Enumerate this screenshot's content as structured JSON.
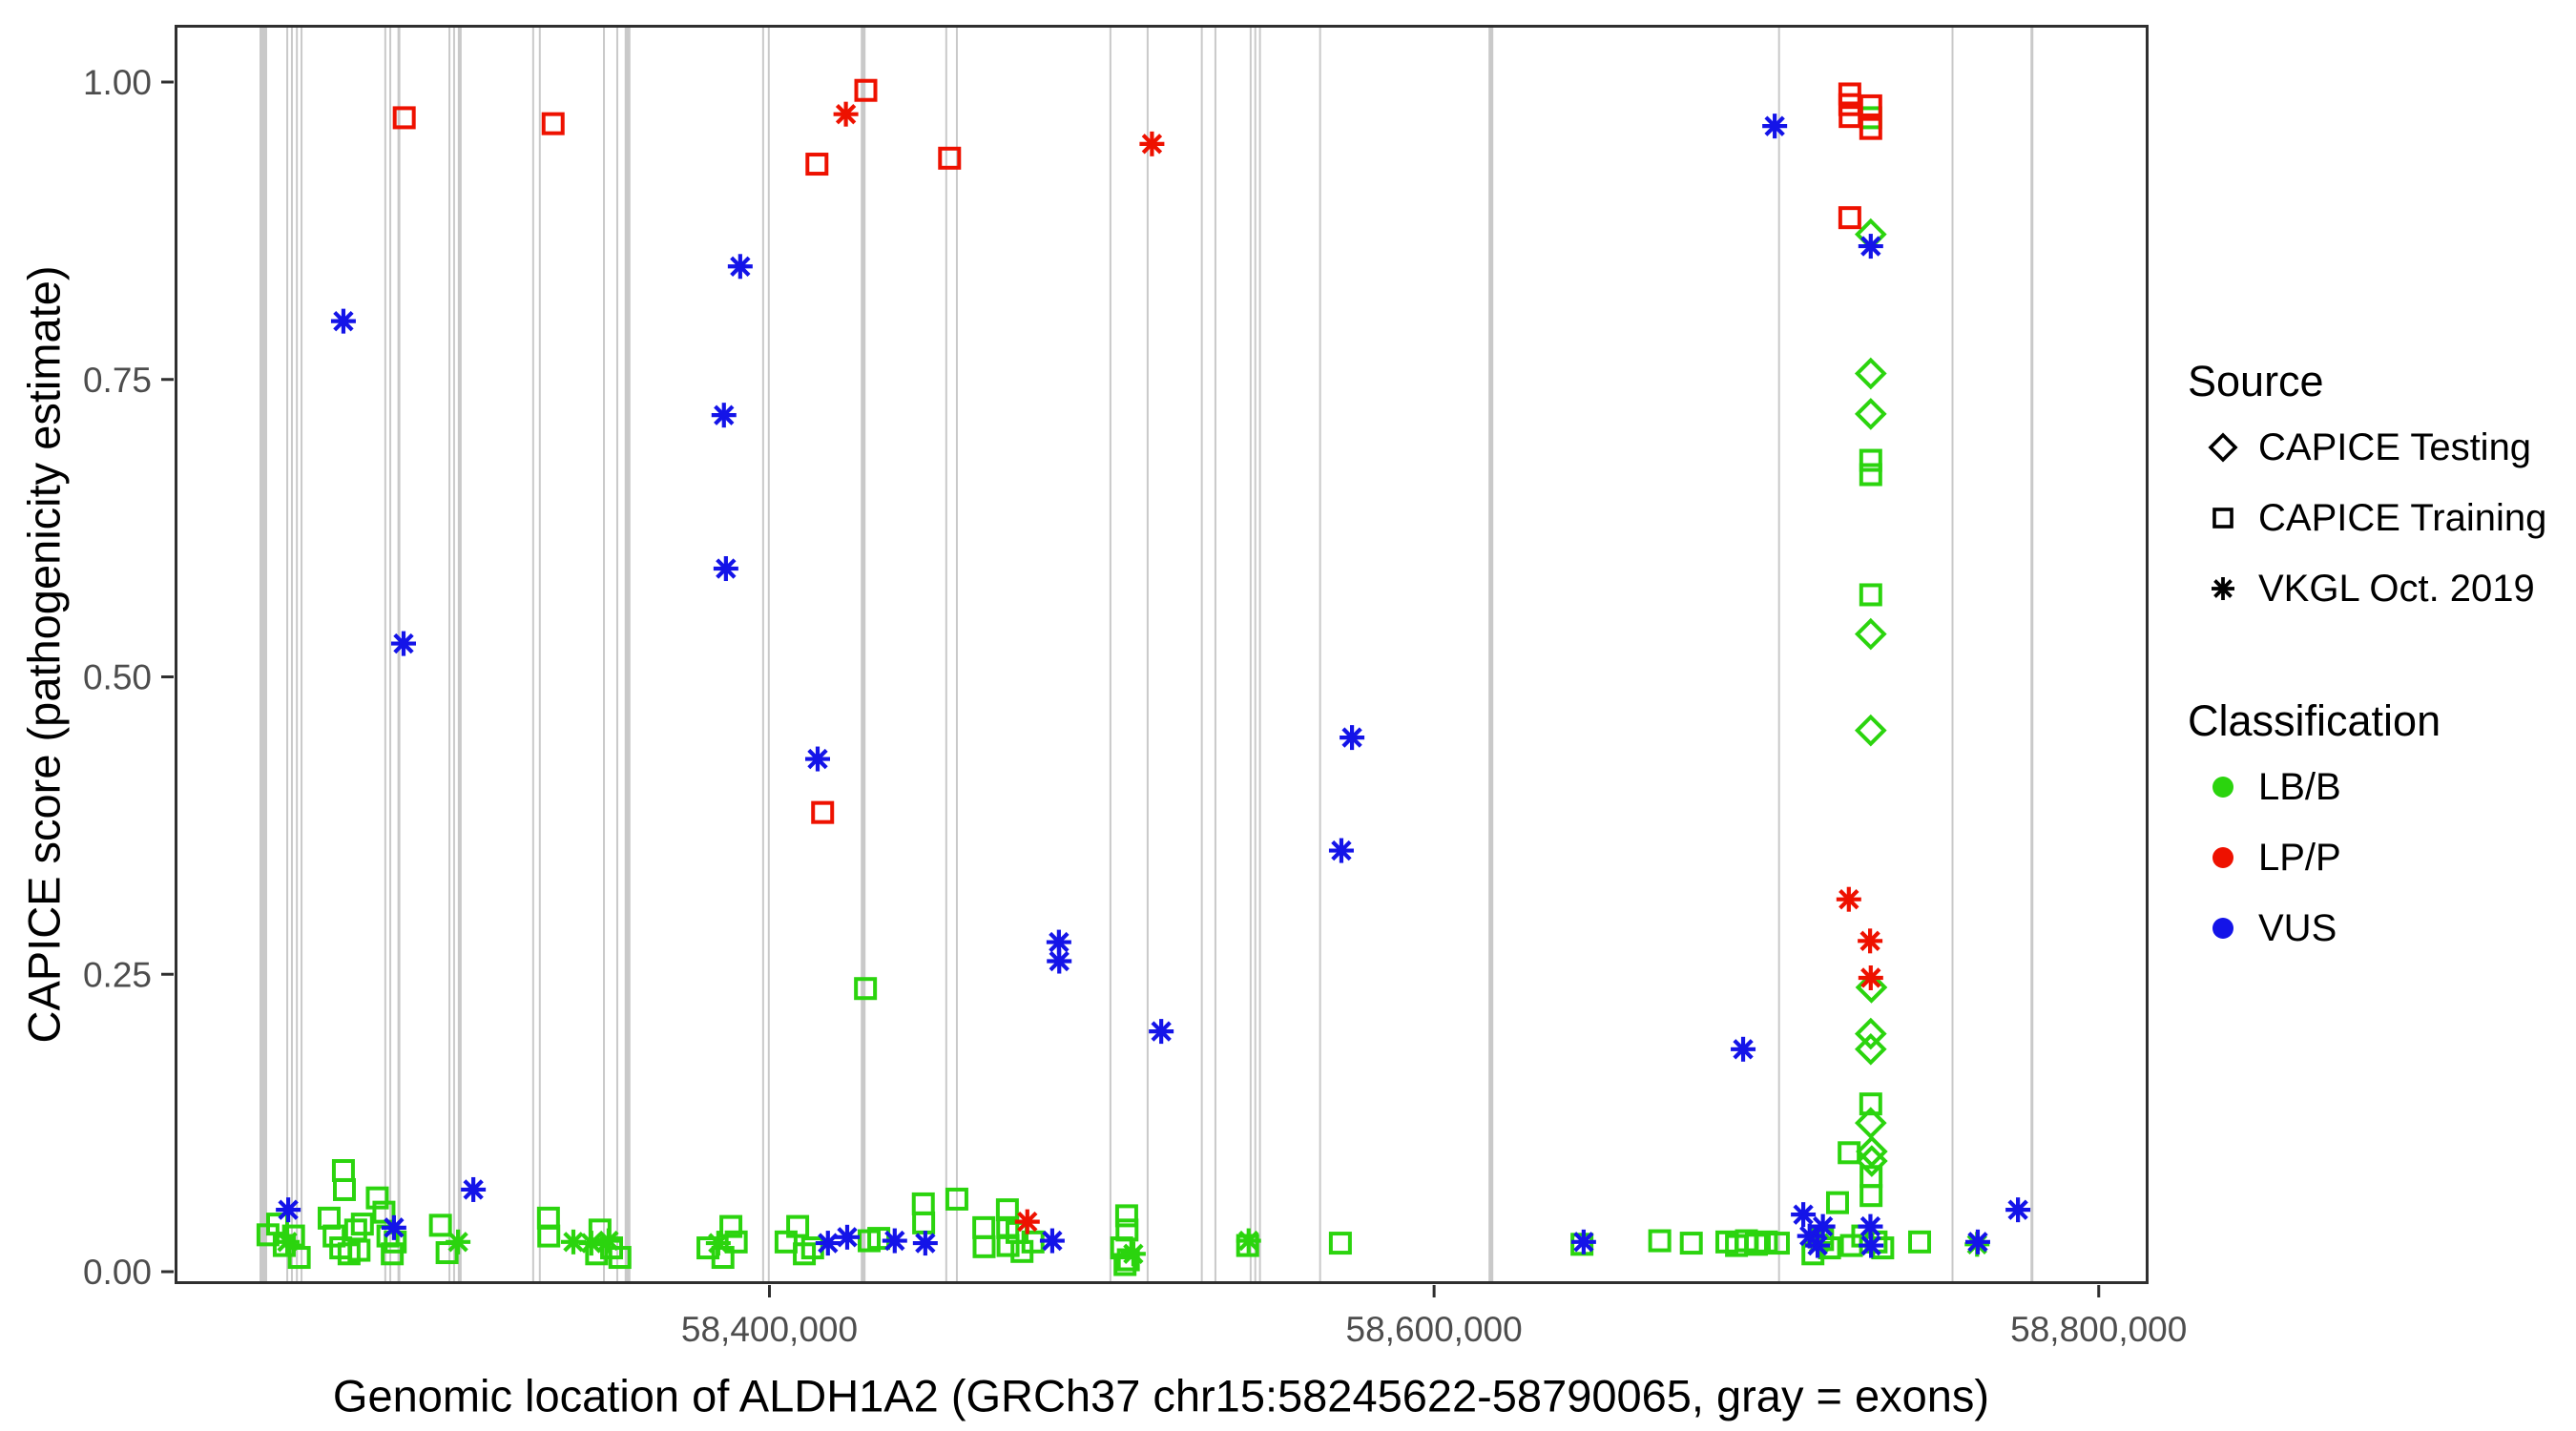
{
  "figure": {
    "x_axis": {
      "title": "Genomic location of ALDH1A2 (GRCh37 chr15:58245622-58790065, gray = exons)",
      "ticks": [
        {
          "value": 58400000,
          "label": "58,400,000"
        },
        {
          "value": 58600000,
          "label": "58,600,000"
        },
        {
          "value": 58800000,
          "label": "58,800,000"
        }
      ]
    },
    "y_axis": {
      "title": "CAPICE score (pathogenicity estimate)",
      "ticks": [
        {
          "value": 0.0,
          "label": "0.00"
        },
        {
          "value": 0.25,
          "label": "0.25"
        },
        {
          "value": 0.5,
          "label": "0.50"
        },
        {
          "value": 0.75,
          "label": "0.75"
        },
        {
          "value": 1.0,
          "label": "1.00"
        }
      ]
    },
    "legend": {
      "source": {
        "title": "Source",
        "items": [
          {
            "label": "CAPICE Testing",
            "glyph": "diamond"
          },
          {
            "label": "CAPICE Training",
            "glyph": "square"
          },
          {
            "label": "VKGL Oct. 2019",
            "glyph": "asterisk"
          }
        ]
      },
      "classification": {
        "title": "Classification",
        "items": [
          {
            "label": "LB/B",
            "color": "#2BD40E"
          },
          {
            "label": "LP/P",
            "color": "#EE1100"
          },
          {
            "label": "VUS",
            "color": "#1414E8"
          }
        ]
      }
    }
  },
  "colors": {
    "lbb": "#2BD40E",
    "lpp": "#EE1100",
    "vus": "#1414E8",
    "exon": "#C9C9C9",
    "tick_text": "#4D4D4D",
    "panel_border": "#2F2F2F"
  },
  "chart_data": {
    "type": "scatter",
    "title": "",
    "xlabel": "Genomic location of ALDH1A2 (GRCh37 chr15:58245622-58790065, gray = exons)",
    "ylabel": "CAPICE score (pathogenicity estimate)",
    "xlim": [
      58221000,
      58815000
    ],
    "ylim": [
      0,
      1
    ],
    "grid": false,
    "legend_position": "right",
    "exons_note": "gray vertical lines mark exon positions",
    "exons": [
      {
        "x": 58247700,
        "w": 8
      },
      {
        "x": 58254900,
        "w": 2
      },
      {
        "x": 58256300,
        "w": 2
      },
      {
        "x": 58257800,
        "w": 2
      },
      {
        "x": 58259200,
        "w": 2
      },
      {
        "x": 58284400,
        "w": 2
      },
      {
        "x": 58285900,
        "w": 2
      },
      {
        "x": 58288500,
        "w": 3
      },
      {
        "x": 58303700,
        "w": 2
      },
      {
        "x": 58305100,
        "w": 2
      },
      {
        "x": 58306800,
        "w": 4
      },
      {
        "x": 58328900,
        "w": 2
      },
      {
        "x": 58330900,
        "w": 2
      },
      {
        "x": 58350200,
        "w": 2
      },
      {
        "x": 58354200,
        "w": 2
      },
      {
        "x": 58357300,
        "w": 6
      },
      {
        "x": 58398100,
        "w": 2
      },
      {
        "x": 58399800,
        "w": 2
      },
      {
        "x": 58428200,
        "w": 5
      },
      {
        "x": 58453200,
        "w": 2
      },
      {
        "x": 58456400,
        "w": 2
      },
      {
        "x": 58502600,
        "w": 2
      },
      {
        "x": 58513800,
        "w": 2
      },
      {
        "x": 58530100,
        "w": 2
      },
      {
        "x": 58534200,
        "w": 2
      },
      {
        "x": 58544800,
        "w": 2
      },
      {
        "x": 58546200,
        "w": 2
      },
      {
        "x": 58547600,
        "w": 2
      },
      {
        "x": 58565700,
        "w": 2
      },
      {
        "x": 58617100,
        "w": 5
      },
      {
        "x": 58703800,
        "w": 2
      },
      {
        "x": 58756000,
        "w": 2
      },
      {
        "x": 58779900,
        "w": 3
      }
    ],
    "series": [
      {
        "name": "LB/B · CAPICE Training",
        "classification": "LB/B",
        "source": "CAPICE Training",
        "marker": "square",
        "color": "#2BD40E",
        "points": [
          [
            58249100,
            0.031
          ],
          [
            58252000,
            0.04
          ],
          [
            58254000,
            0.022
          ],
          [
            58256800,
            0.03
          ],
          [
            58258500,
            0.012
          ],
          [
            58267500,
            0.045
          ],
          [
            58269000,
            0.03
          ],
          [
            58271000,
            0.02
          ],
          [
            58271800,
            0.085
          ],
          [
            58272100,
            0.069
          ],
          [
            58273500,
            0.015
          ],
          [
            58275500,
            0.035
          ],
          [
            58276500,
            0.018
          ],
          [
            58277500,
            0.04
          ],
          [
            58282000,
            0.062
          ],
          [
            58284000,
            0.05
          ],
          [
            58285200,
            0.03
          ],
          [
            58286500,
            0.015
          ],
          [
            58287400,
            0.025
          ],
          [
            58301000,
            0.039
          ],
          [
            58303000,
            0.016
          ],
          [
            58333500,
            0.045
          ],
          [
            58333600,
            0.03
          ],
          [
            58348000,
            0.015
          ],
          [
            58349000,
            0.035
          ],
          [
            58352500,
            0.02
          ],
          [
            58355000,
            0.012
          ],
          [
            58381500,
            0.02
          ],
          [
            58386000,
            0.012
          ],
          [
            58388400,
            0.038
          ],
          [
            58390000,
            0.025
          ],
          [
            58405000,
            0.025
          ],
          [
            58408500,
            0.038
          ],
          [
            58410500,
            0.015
          ],
          [
            58413000,
            0.02
          ],
          [
            58428900,
            0.238
          ],
          [
            58430000,
            0.026
          ],
          [
            58432900,
            0.028
          ],
          [
            58446300,
            0.057
          ],
          [
            58446400,
            0.041
          ],
          [
            58456400,
            0.061
          ],
          [
            58464500,
            0.037
          ],
          [
            58464600,
            0.021
          ],
          [
            58471600,
            0.052
          ],
          [
            58471700,
            0.037
          ],
          [
            58471800,
            0.022
          ],
          [
            58474500,
            0.033
          ],
          [
            58476000,
            0.017
          ],
          [
            58479300,
            0.025
          ],
          [
            58506000,
            0.02
          ],
          [
            58507000,
            0.006
          ],
          [
            58507500,
            0.047
          ],
          [
            58507600,
            0.035
          ],
          [
            58508000,
            0.01
          ],
          [
            58543900,
            0.022
          ],
          [
            58571800,
            0.024
          ],
          [
            58644500,
            0.023
          ],
          [
            58667900,
            0.026
          ],
          [
            58677400,
            0.024
          ],
          [
            58688100,
            0.025
          ],
          [
            58691000,
            0.022
          ],
          [
            58694000,
            0.026
          ],
          [
            58697000,
            0.023
          ],
          [
            58700000,
            0.025
          ],
          [
            58703600,
            0.024
          ],
          [
            58714000,
            0.015
          ],
          [
            58716900,
            0.027
          ],
          [
            58719000,
            0.02
          ],
          [
            58721400,
            0.058
          ],
          [
            58724900,
            0.1
          ],
          [
            58725600,
            0.022
          ],
          [
            58729000,
            0.03
          ],
          [
            58731400,
            0.97
          ],
          [
            58731400,
            0.682
          ],
          [
            58731400,
            0.67
          ],
          [
            58731400,
            0.569
          ],
          [
            58731400,
            0.141
          ],
          [
            58731500,
            0.08
          ],
          [
            58731500,
            0.064
          ],
          [
            58733000,
            0.025
          ],
          [
            58735000,
            0.02
          ],
          [
            58746100,
            0.025
          ]
        ]
      },
      {
        "name": "LB/B · CAPICE Testing",
        "classification": "LB/B",
        "source": "CAPICE Testing",
        "marker": "diamond",
        "color": "#2BD40E",
        "points": [
          [
            58731400,
            0.872
          ],
          [
            58731400,
            0.755
          ],
          [
            58731400,
            0.721
          ],
          [
            58731400,
            0.536
          ],
          [
            58731400,
            0.455
          ],
          [
            58731600,
            0.239
          ],
          [
            58731400,
            0.2
          ],
          [
            58731400,
            0.187
          ],
          [
            58731400,
            0.125
          ],
          [
            58731700,
            0.101
          ],
          [
            58731700,
            0.093
          ]
        ]
      },
      {
        "name": "LB/B · VKGL Oct. 2019",
        "classification": "LB/B",
        "source": "VKGL Oct. 2019",
        "marker": "asterisk",
        "color": "#2BD40E",
        "points": [
          [
            58254900,
            0.025
          ],
          [
            58306300,
            0.025
          ],
          [
            58341000,
            0.025
          ],
          [
            58346400,
            0.024
          ],
          [
            58351600,
            0.026
          ],
          [
            58384600,
            0.024
          ],
          [
            58509500,
            0.015
          ],
          [
            58544200,
            0.026
          ],
          [
            58715800,
            0.024
          ],
          [
            58763400,
            0.023
          ]
        ]
      },
      {
        "name": "LP/P · CAPICE Training",
        "classification": "LP/P",
        "source": "CAPICE Training",
        "marker": "square",
        "color": "#EE1100",
        "points": [
          [
            58290100,
            0.97
          ],
          [
            58334900,
            0.965
          ],
          [
            58414300,
            0.931
          ],
          [
            58416000,
            0.386
          ],
          [
            58429000,
            0.993
          ],
          [
            58454200,
            0.936
          ],
          [
            58725100,
            0.99
          ],
          [
            58725100,
            0.981
          ],
          [
            58725200,
            0.971
          ],
          [
            58725100,
            0.886
          ],
          [
            58731400,
            0.98
          ],
          [
            58731400,
            0.961
          ]
        ]
      },
      {
        "name": "LP/P · VKGL Oct. 2019",
        "classification": "LP/P",
        "source": "VKGL Oct. 2019",
        "marker": "asterisk",
        "color": "#EE1100",
        "points": [
          [
            58423000,
            0.973
          ],
          [
            58477600,
            0.042
          ],
          [
            58515100,
            0.948
          ],
          [
            58724800,
            0.313
          ],
          [
            58731200,
            0.278
          ],
          [
            58731400,
            0.247
          ]
        ]
      },
      {
        "name": "VUS · VKGL Oct. 2019",
        "classification": "VUS",
        "source": "VKGL Oct. 2019",
        "marker": "asterisk",
        "color": "#1414E8",
        "points": [
          [
            58271800,
            0.799
          ],
          [
            58289900,
            0.528
          ],
          [
            58386300,
            0.72
          ],
          [
            58386900,
            0.591
          ],
          [
            58391200,
            0.845
          ],
          [
            58414500,
            0.431
          ],
          [
            58487100,
            0.277
          ],
          [
            58487200,
            0.261
          ],
          [
            58517900,
            0.202
          ],
          [
            58572100,
            0.354
          ],
          [
            58575300,
            0.449
          ],
          [
            58693000,
            0.187
          ],
          [
            58702500,
            0.963
          ],
          [
            58731400,
            0.862
          ],
          [
            58255200,
            0.052
          ],
          [
            58287000,
            0.037
          ],
          [
            58310900,
            0.069
          ],
          [
            58417600,
            0.024
          ],
          [
            58423400,
            0.029
          ],
          [
            58437700,
            0.026
          ],
          [
            58446900,
            0.024
          ],
          [
            58485100,
            0.026
          ],
          [
            58645000,
            0.025
          ],
          [
            58711100,
            0.048
          ],
          [
            58713000,
            0.03
          ],
          [
            58715400,
            0.022
          ],
          [
            58717000,
            0.038
          ],
          [
            58731300,
            0.038
          ],
          [
            58731500,
            0.022
          ],
          [
            58763600,
            0.025
          ],
          [
            58775700,
            0.052
          ]
        ]
      }
    ]
  }
}
